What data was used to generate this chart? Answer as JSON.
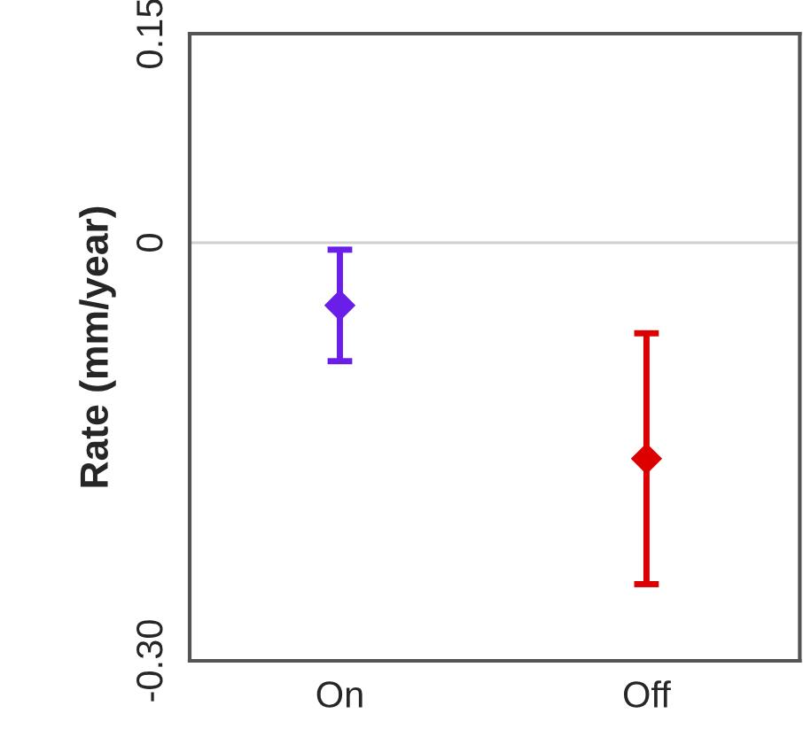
{
  "chart_data": {
    "type": "scatter",
    "ylabel": "Rate (mm/year)",
    "categories": [
      "On",
      "Off"
    ],
    "values": [
      -0.045,
      -0.155
    ],
    "errors": [
      0.04,
      0.09
    ],
    "colors": [
      "#6a1fe8",
      "#dd0000"
    ],
    "marker": "diamond",
    "ylim": [
      -0.3,
      0.15
    ],
    "yticks": [
      {
        "value": 0.15,
        "label": "0.15"
      },
      0,
      {
        "value": -0.3,
        "label": "-0.30"
      }
    ],
    "ref_lines": [
      {
        "axis": "y",
        "value": 0,
        "color": "#d0d0d0"
      }
    ],
    "grid": false,
    "legend": false
  }
}
